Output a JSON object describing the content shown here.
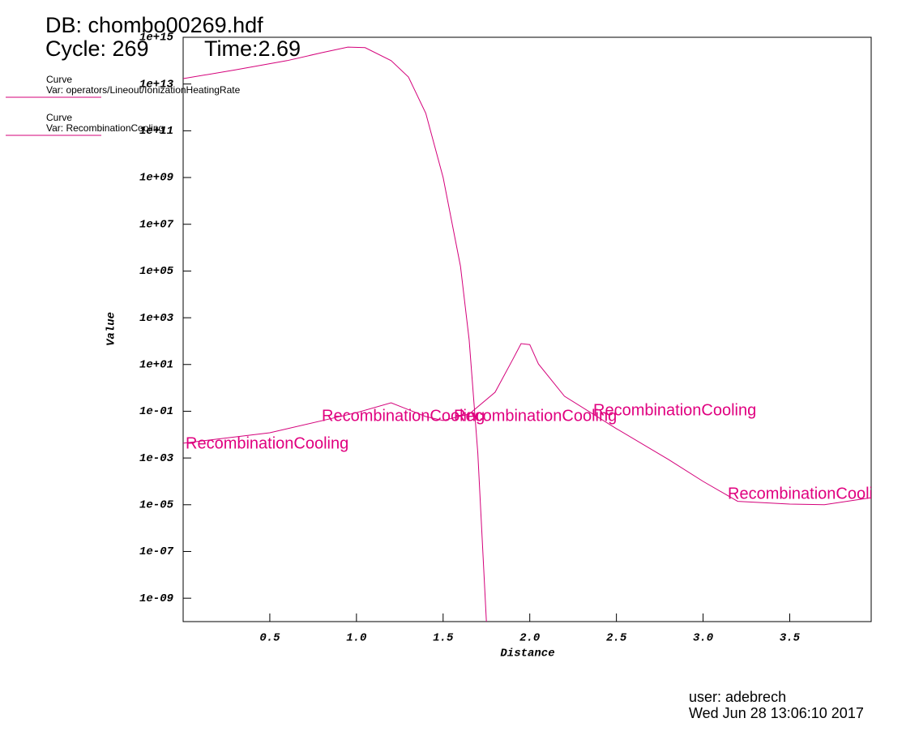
{
  "chart_data": {
    "type": "line",
    "header": {
      "db": "DB: chombo00269.hdf",
      "cycle": "Cycle: 269",
      "time": "Time:2.69"
    },
    "footer": {
      "user": "user: adebrech",
      "date": "Wed Jun 28 13:06:10 2017"
    },
    "xlabel": "Distance",
    "ylabel": "Value",
    "log_y": true,
    "xlim": [
      0,
      3.97
    ],
    "ylim": [
      1e-10,
      1000000000000000.0
    ],
    "xticks": [
      0.5,
      {
        "value": 1,
        "label": "1.0"
      },
      1.5,
      {
        "value": 2,
        "label": "2.0"
      },
      2.5,
      {
        "value": 3,
        "label": "3.0"
      },
      3.5
    ],
    "yticks": [
      {
        "value": 1000000000000000.0,
        "label": "1e+15"
      },
      {
        "value": 10000000000000.0,
        "label": "1e+13"
      },
      {
        "value": 100000000000.0,
        "label": "1e+11"
      },
      {
        "value": 1000000000.0,
        "label": "1e+09"
      },
      {
        "value": 10000000.0,
        "label": "1e+07"
      },
      {
        "value": 100000.0,
        "label": "1e+05"
      },
      {
        "value": 1000.0,
        "label": "1e+03"
      },
      {
        "value": 10,
        "label": "1e+01"
      },
      {
        "value": 0.1,
        "label": "1e-01"
      },
      {
        "value": 0.001,
        "label": "1e-03"
      },
      {
        "value": 1e-05,
        "label": "1e-05"
      },
      {
        "value": 1e-07,
        "label": "1e-07"
      },
      {
        "value": 1e-09,
        "label": "1e-09"
      }
    ],
    "series": [
      {
        "kind": "Curve",
        "name": "Var: operators/Lineout/IonizationHeatingRate",
        "color": "#d4007a",
        "x": [
          0,
          0.3,
          0.6,
          0.8,
          0.95,
          1.05,
          1.2,
          1.3,
          1.4,
          1.5,
          1.6,
          1.65,
          1.7,
          1.75
        ],
        "values": [
          17000000000000.0,
          40000000000000.0,
          100000000000000.0,
          220000000000000.0,
          380000000000000.0,
          360000000000000.0,
          100000000000000.0,
          20000000000000.0,
          560000000000.0,
          1000000000.0,
          160000.0,
          115,
          0.0016,
          1e-10
        ]
      },
      {
        "kind": "Curve",
        "name": "Var: RecombinationCooling",
        "color": "#d4007a",
        "x": [
          0,
          0.5,
          1.0,
          1.2,
          1.4,
          1.5,
          1.65,
          1.8,
          1.9,
          1.95,
          2.0,
          2.05,
          2.2,
          2.5,
          2.8,
          3.0,
          3.2,
          3.5,
          3.7,
          3.97
        ],
        "values": [
          0.0043,
          0.012,
          0.087,
          0.23,
          0.059,
          0.04,
          0.076,
          0.65,
          15.5,
          78,
          71,
          10.5,
          0.44,
          0.018,
          0.00087,
          0.0001,
          1.4e-05,
          1.07e-05,
          1e-05,
          2e-05
        ]
      }
    ],
    "curve_labels": [
      "RecombinationCooling",
      "RecombinationCooling",
      "RecombinationCooling",
      "RecombinationCooling",
      "RecombinationCooling"
    ]
  }
}
